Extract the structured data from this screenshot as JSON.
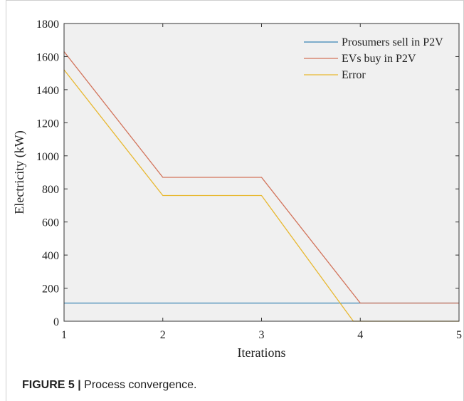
{
  "chart_data": {
    "type": "line",
    "title": "",
    "xlabel": "Iterations",
    "ylabel": "Electricity (kW)",
    "xlim": [
      1,
      5
    ],
    "ylim": [
      0,
      1800
    ],
    "xticks": [
      1,
      2,
      3,
      4,
      5
    ],
    "yticks": [
      0,
      200,
      400,
      600,
      800,
      1000,
      1200,
      1400,
      1600,
      1800
    ],
    "grid": false,
    "legend_position": "top-right",
    "background": "#f0f0f0",
    "series": [
      {
        "name": "Prosumers sell in P2V",
        "color": "#3a85b5",
        "x": [
          1,
          2,
          3,
          4,
          5
        ],
        "y": [
          110,
          110,
          110,
          110,
          110
        ]
      },
      {
        "name": "EVs buy in P2V",
        "color": "#d2735a",
        "x": [
          1,
          2,
          3,
          4,
          5
        ],
        "y": [
          1630,
          870,
          870,
          110,
          110
        ]
      },
      {
        "name": "Error",
        "color": "#e8b830",
        "x": [
          1,
          2,
          3,
          3.93,
          4,
          5
        ],
        "y": [
          1520,
          760,
          760,
          0,
          0,
          0
        ]
      }
    ]
  },
  "caption": {
    "lead": "FIGURE 5 |",
    "text": " Process convergence."
  }
}
